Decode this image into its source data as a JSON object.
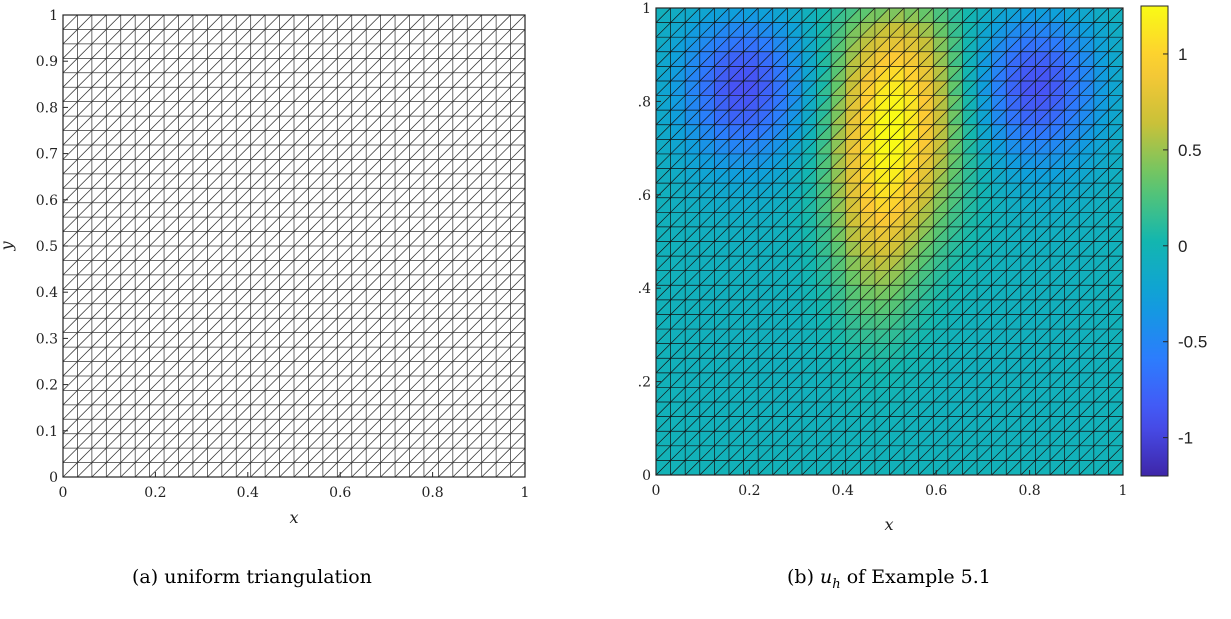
{
  "figures": [
    {
      "caption_label": "(a)",
      "caption_text": "uniform triangulation",
      "xlabel": "x",
      "ylabel": "y",
      "xticks": [
        "0",
        "0.2",
        "0.4",
        "0.6",
        "0.8",
        "1"
      ],
      "yticks": [
        "0",
        "0.1",
        "0.2",
        "0.3",
        "0.4",
        "0.5",
        "0.6",
        "0.7",
        "0.8",
        "0.9",
        "1"
      ]
    },
    {
      "caption_label": "(b)",
      "caption_math_base": "u",
      "caption_math_sub": "h",
      "caption_text": "of Example 5.1",
      "xlabel": "x",
      "xticks": [
        "0",
        "0.2",
        "0.4",
        "0.6",
        "0.8",
        "1"
      ],
      "yticks": [
        "0",
        ".2",
        ".4",
        ".6",
        ".8",
        "1"
      ],
      "colorbar_ticks": [
        "1",
        "0.5",
        "0",
        "-0.5",
        "-1"
      ]
    }
  ],
  "chart_data": [
    {
      "type": "mesh",
      "title": "",
      "xlabel": "x",
      "ylabel": "y",
      "xlim": [
        0,
        1
      ],
      "ylim": [
        0,
        1
      ],
      "mesh": {
        "divisions": 32,
        "element": "right triangle",
        "diagonal": "bottom-left to top-right"
      }
    },
    {
      "type": "heatmap",
      "title": "",
      "xlabel": "x",
      "ylabel": "",
      "xlim": [
        0,
        1
      ],
      "ylim": [
        0,
        1
      ],
      "mesh": {
        "divisions": 32,
        "element": "right triangle",
        "diagonal": "bottom-left to top-right"
      },
      "colormap": "parula",
      "color_range": [
        -1.2,
        1.25
      ],
      "colorbar_ticks": [
        1,
        0.5,
        0,
        -0.5,
        -1
      ],
      "features": [
        {
          "kind": "minimum",
          "x": 0.18,
          "y": 0.85,
          "value": -1.15
        },
        {
          "kind": "minimum",
          "x": 0.82,
          "y": 0.85,
          "value": -1.15
        },
        {
          "kind": "maximum",
          "x": 0.52,
          "y": 0.82,
          "value": 1.2
        }
      ]
    }
  ]
}
